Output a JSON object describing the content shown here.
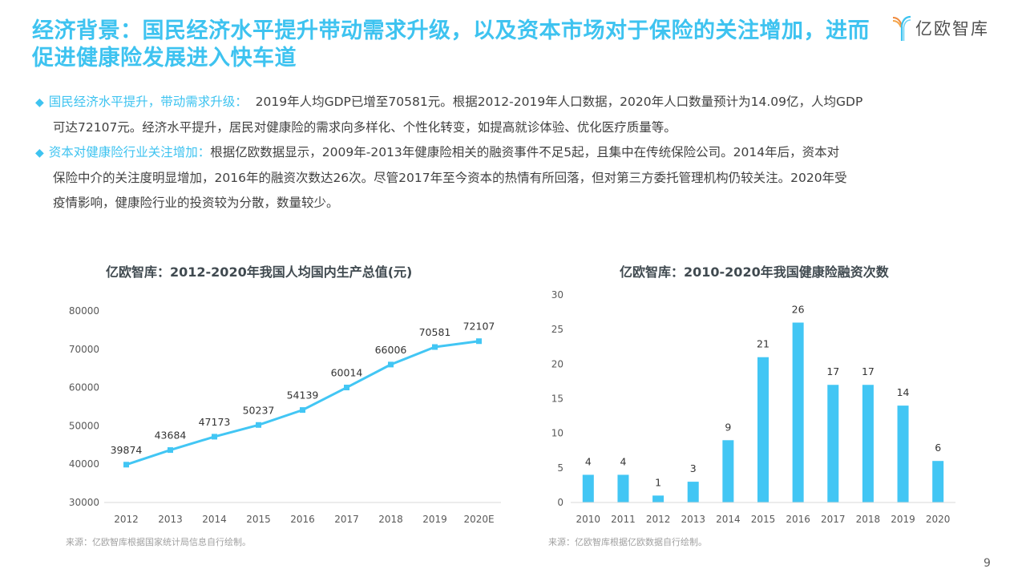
{
  "title": "经济背景：国民经济水平提升带动需求升级，以及资本市场对于保险的关注增加，进而促进健康险发展进入快车道",
  "logo": {
    "icon": "yiou-logo-icon",
    "text": "亿欧智库"
  },
  "bullets": [
    {
      "icon": "diamond-icon",
      "highlight": "国民经济水平提升，带动需求升级：",
      "line1": "  2019年人均GDP已增至70581元。根据2012-2019年人口数据，2020年人口数量预计为14.09亿，人均GDP",
      "line2": "可达72107元。经济水平提升，居民对健康险的需求向多样化、个性化转变，如提高就诊体验、优化医疗质量等。"
    },
    {
      "icon": "diamond-icon",
      "highlight": "资本对健康险行业关注增加：",
      "line1": "根据亿欧数据显示，2009年-2013年健康险相关的融资事件不足5起，且集中在传统保险公司。2014年后，资本对",
      "line2": "保险中介的关注度明显增加，2016年的融资次数达26次。尽管2017年至今资本的热情有所回落，但对第三方委托管理机构仍较关注。2020年受",
      "line3": "疫情影响，健康险行业的投资较为分散，数量较少。"
    }
  ],
  "chart_data": [
    {
      "type": "line",
      "title": "亿欧智库：2012-2020年我国人均国内生产总值(元)",
      "categories": [
        "2012",
        "2013",
        "2014",
        "2015",
        "2016",
        "2017",
        "2018",
        "2019",
        "2020E"
      ],
      "values": [
        39874,
        43684,
        47173,
        50237,
        54139,
        60014,
        66006,
        70581,
        72107
      ],
      "data_labels": [
        "39874",
        "43684",
        "47173",
        "50237",
        "54139",
        "60014",
        "66006",
        "70581",
        "72107"
      ],
      "yticks": [
        "30000",
        "40000",
        "50000",
        "60000",
        "70000",
        "80000"
      ],
      "ylim": [
        30000,
        80000
      ],
      "xlabel": "",
      "ylabel": "",
      "grid": false,
      "color": "#42c6f4",
      "source": "来源：亿欧智库根据国家统计局信息自行绘制。"
    },
    {
      "type": "bar",
      "title": "亿欧智库：2010-2020年我国健康险融资次数",
      "categories": [
        "2010",
        "2011",
        "2012",
        "2013",
        "2014",
        "2015",
        "2016",
        "2017",
        "2018",
        "2019",
        "2020"
      ],
      "values": [
        4,
        4,
        1,
        3,
        9,
        21,
        26,
        17,
        17,
        14,
        6
      ],
      "data_labels": [
        "4",
        "4",
        "1",
        "3",
        "9",
        "21",
        "26",
        "17",
        "17",
        "14",
        "6"
      ],
      "yticks": [
        "0",
        "5",
        "10",
        "15",
        "20",
        "25",
        "30"
      ],
      "ylim": [
        0,
        30
      ],
      "xlabel": "",
      "ylabel": "",
      "grid": false,
      "color": "#42c6f4",
      "source": "来源：亿欧智库根据亿欧数据自行绘制。"
    }
  ],
  "page_number": "9"
}
